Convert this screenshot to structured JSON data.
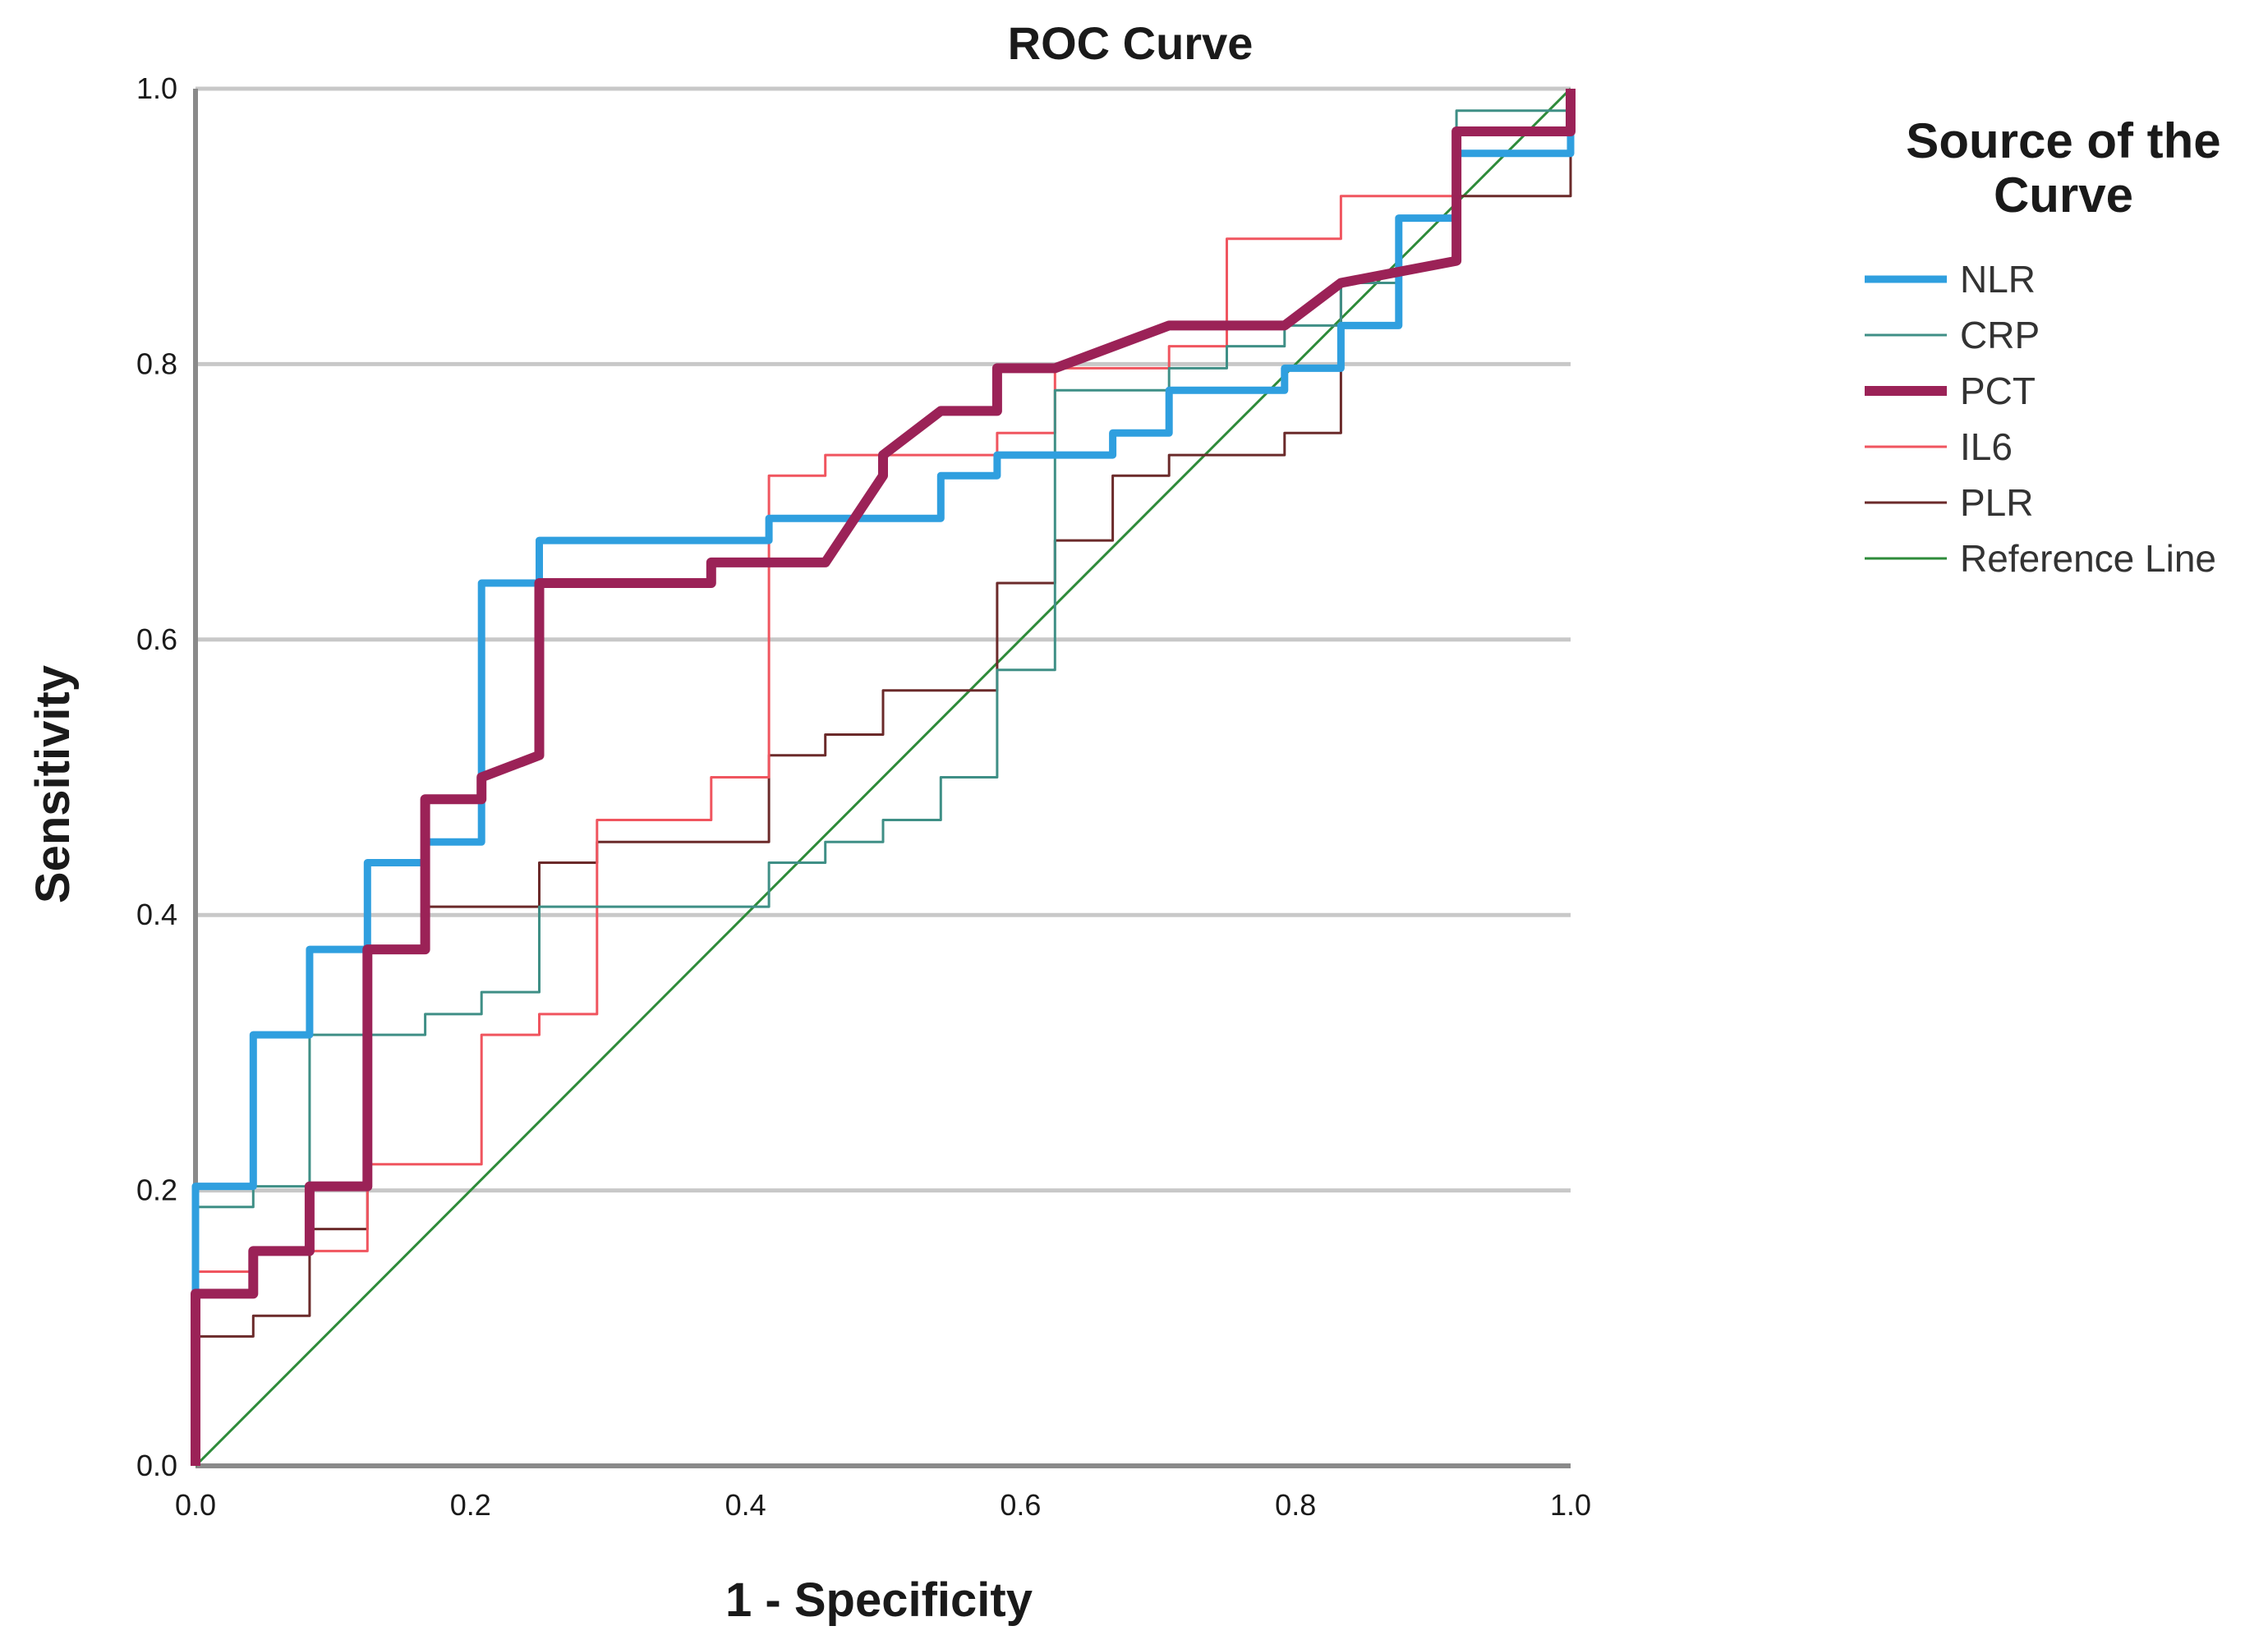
{
  "chart_data": {
    "type": "line",
    "title": "ROC Curve",
    "xlabel": "1 - Specificity",
    "ylabel": "Sensitivity",
    "xlim": [
      0,
      1
    ],
    "ylim": [
      0,
      1
    ],
    "x_ticks": [
      "0.0",
      "0.2",
      "0.4",
      "0.6",
      "0.8",
      "1.0"
    ],
    "y_ticks": [
      "0.0",
      "0.2",
      "0.4",
      "0.6",
      "0.8",
      "1.0"
    ],
    "grid": "horizontal",
    "legend_title": "Source of the Curve",
    "legend_position": "right",
    "series": [
      {
        "name": "NLR",
        "color": "#2f9fdf",
        "weight": "thick",
        "points": [
          [
            0,
            0
          ],
          [
            0,
            0.141
          ],
          [
            0,
            0.203
          ],
          [
            0.042,
            0.203
          ],
          [
            0.042,
            0.313
          ],
          [
            0.083,
            0.313
          ],
          [
            0.083,
            0.375
          ],
          [
            0.125,
            0.375
          ],
          [
            0.125,
            0.438
          ],
          [
            0.167,
            0.438
          ],
          [
            0.167,
            0.453
          ],
          [
            0.208,
            0.453
          ],
          [
            0.208,
            0.641
          ],
          [
            0.25,
            0.641
          ],
          [
            0.25,
            0.672
          ],
          [
            0.417,
            0.672
          ],
          [
            0.417,
            0.688
          ],
          [
            0.542,
            0.688
          ],
          [
            0.542,
            0.719
          ],
          [
            0.583,
            0.719
          ],
          [
            0.583,
            0.734
          ],
          [
            0.667,
            0.734
          ],
          [
            0.667,
            0.75
          ],
          [
            0.708,
            0.75
          ],
          [
            0.708,
            0.781
          ],
          [
            0.792,
            0.781
          ],
          [
            0.792,
            0.797
          ],
          [
            0.833,
            0.797
          ],
          [
            0.833,
            0.828
          ],
          [
            0.875,
            0.828
          ],
          [
            0.875,
            0.906
          ],
          [
            0.917,
            0.906
          ],
          [
            0.917,
            0.953
          ],
          [
            1,
            0.953
          ],
          [
            1,
            1
          ]
        ]
      },
      {
        "name": "CRP",
        "color": "#3f8f86",
        "weight": "thin",
        "points": [
          [
            0,
            0
          ],
          [
            0,
            0.188
          ],
          [
            0.042,
            0.188
          ],
          [
            0.042,
            0.203
          ],
          [
            0.083,
            0.203
          ],
          [
            0.083,
            0.313
          ],
          [
            0.167,
            0.313
          ],
          [
            0.167,
            0.328
          ],
          [
            0.208,
            0.328
          ],
          [
            0.208,
            0.344
          ],
          [
            0.25,
            0.344
          ],
          [
            0.25,
            0.406
          ],
          [
            0.417,
            0.406
          ],
          [
            0.417,
            0.438
          ],
          [
            0.458,
            0.438
          ],
          [
            0.458,
            0.453
          ],
          [
            0.5,
            0.453
          ],
          [
            0.5,
            0.469
          ],
          [
            0.542,
            0.469
          ],
          [
            0.542,
            0.5
          ],
          [
            0.583,
            0.5
          ],
          [
            0.583,
            0.578
          ],
          [
            0.625,
            0.578
          ],
          [
            0.625,
            0.781
          ],
          [
            0.708,
            0.781
          ],
          [
            0.708,
            0.797
          ],
          [
            0.75,
            0.797
          ],
          [
            0.75,
            0.813
          ],
          [
            0.792,
            0.813
          ],
          [
            0.792,
            0.828
          ],
          [
            0.833,
            0.828
          ],
          [
            0.833,
            0.859
          ],
          [
            0.875,
            0.859
          ],
          [
            0.875,
            0.906
          ],
          [
            0.917,
            0.906
          ],
          [
            0.917,
            0.984
          ],
          [
            1,
            0.984
          ],
          [
            1,
            1
          ]
        ]
      },
      {
        "name": "PCT",
        "color": "#9b2257",
        "weight": "extra-thick",
        "points": [
          [
            0,
            0
          ],
          [
            0,
            0.125
          ],
          [
            0.042,
            0.125
          ],
          [
            0.042,
            0.156
          ],
          [
            0.083,
            0.156
          ],
          [
            0.083,
            0.203
          ],
          [
            0.125,
            0.203
          ],
          [
            0.125,
            0.375
          ],
          [
            0.167,
            0.375
          ],
          [
            0.167,
            0.484
          ],
          [
            0.208,
            0.484
          ],
          [
            0.208,
            0.5
          ],
          [
            0.25,
            0.516
          ],
          [
            0.25,
            0.641
          ],
          [
            0.375,
            0.641
          ],
          [
            0.375,
            0.656
          ],
          [
            0.458,
            0.656
          ],
          [
            0.5,
            0.719
          ],
          [
            0.5,
            0.734
          ],
          [
            0.542,
            0.766
          ],
          [
            0.583,
            0.766
          ],
          [
            0.583,
            0.797
          ],
          [
            0.625,
            0.797
          ],
          [
            0.708,
            0.828
          ],
          [
            0.792,
            0.828
          ],
          [
            0.833,
            0.859
          ],
          [
            0.875,
            0.867
          ],
          [
            0.917,
            0.875
          ],
          [
            0.917,
            0.969
          ],
          [
            1,
            0.969
          ],
          [
            1,
            1
          ]
        ]
      },
      {
        "name": "IL6",
        "color": "#f0555f",
        "weight": "thin",
        "points": [
          [
            0,
            0
          ],
          [
            0,
            0.141
          ],
          [
            0.042,
            0.141
          ],
          [
            0.042,
            0.156
          ],
          [
            0.125,
            0.156
          ],
          [
            0.125,
            0.219
          ],
          [
            0.208,
            0.219
          ],
          [
            0.208,
            0.313
          ],
          [
            0.25,
            0.313
          ],
          [
            0.25,
            0.328
          ],
          [
            0.292,
            0.328
          ],
          [
            0.292,
            0.469
          ],
          [
            0.375,
            0.469
          ],
          [
            0.375,
            0.5
          ],
          [
            0.417,
            0.5
          ],
          [
            0.417,
            0.719
          ],
          [
            0.458,
            0.719
          ],
          [
            0.458,
            0.734
          ],
          [
            0.583,
            0.734
          ],
          [
            0.583,
            0.75
          ],
          [
            0.625,
            0.75
          ],
          [
            0.625,
            0.797
          ],
          [
            0.708,
            0.797
          ],
          [
            0.708,
            0.813
          ],
          [
            0.75,
            0.813
          ],
          [
            0.75,
            0.891
          ],
          [
            0.833,
            0.891
          ],
          [
            0.833,
            0.922
          ],
          [
            0.917,
            0.922
          ],
          [
            0.917,
            0.953
          ],
          [
            1,
            0.953
          ],
          [
            1,
            1
          ]
        ]
      },
      {
        "name": "PLR",
        "color": "#6b2a2a",
        "weight": "thin",
        "points": [
          [
            0,
            0
          ],
          [
            0,
            0.094
          ],
          [
            0.042,
            0.094
          ],
          [
            0.042,
            0.109
          ],
          [
            0.083,
            0.109
          ],
          [
            0.083,
            0.172
          ],
          [
            0.125,
            0.172
          ],
          [
            0.125,
            0.219
          ],
          [
            0.125,
            0.375
          ],
          [
            0.167,
            0.375
          ],
          [
            0.167,
            0.406
          ],
          [
            0.25,
            0.406
          ],
          [
            0.25,
            0.438
          ],
          [
            0.292,
            0.438
          ],
          [
            0.292,
            0.453
          ],
          [
            0.417,
            0.453
          ],
          [
            0.417,
            0.516
          ],
          [
            0.458,
            0.516
          ],
          [
            0.458,
            0.531
          ],
          [
            0.5,
            0.531
          ],
          [
            0.5,
            0.563
          ],
          [
            0.583,
            0.563
          ],
          [
            0.583,
            0.641
          ],
          [
            0.625,
            0.641
          ],
          [
            0.625,
            0.672
          ],
          [
            0.667,
            0.672
          ],
          [
            0.667,
            0.719
          ],
          [
            0.708,
            0.719
          ],
          [
            0.708,
            0.734
          ],
          [
            0.792,
            0.734
          ],
          [
            0.792,
            0.75
          ],
          [
            0.833,
            0.75
          ],
          [
            0.833,
            0.859
          ],
          [
            0.875,
            0.859
          ],
          [
            0.875,
            0.906
          ],
          [
            0.917,
            0.906
          ],
          [
            0.917,
            0.922
          ],
          [
            1,
            0.922
          ],
          [
            1,
            1
          ]
        ]
      },
      {
        "name": "Reference Line",
        "color": "#2e8b3a",
        "weight": "thin",
        "points": [
          [
            0,
            0
          ],
          [
            1,
            1
          ]
        ]
      }
    ]
  }
}
